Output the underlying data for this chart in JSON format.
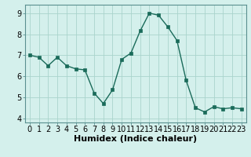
{
  "x": [
    0,
    1,
    2,
    3,
    4,
    5,
    6,
    7,
    8,
    9,
    10,
    11,
    12,
    13,
    14,
    15,
    16,
    17,
    18,
    19,
    20,
    21,
    22,
    23
  ],
  "y": [
    7.0,
    6.9,
    6.5,
    6.9,
    6.5,
    6.35,
    6.3,
    5.2,
    4.7,
    5.35,
    6.8,
    7.1,
    8.15,
    9.0,
    8.9,
    8.35,
    7.7,
    5.8,
    4.5,
    4.3,
    4.55,
    4.45,
    4.5,
    4.45
  ],
  "xlabel": "Humidex (Indice chaleur)",
  "ylim": [
    3.8,
    9.4
  ],
  "xlim": [
    -0.5,
    23.5
  ],
  "yticks": [
    4,
    5,
    6,
    7,
    8,
    9
  ],
  "xtick_labels": [
    "0",
    "1",
    "2",
    "3",
    "4",
    "5",
    "6",
    "7",
    "8",
    "9",
    "10",
    "11",
    "12",
    "13",
    "14",
    "15",
    "16",
    "17",
    "18",
    "19",
    "20",
    "21",
    "22",
    "23"
  ],
  "line_color": "#1a6b5a",
  "marker_color": "#1a6b5a",
  "bg_color": "#d4f0ec",
  "grid_color": "#aad4cc",
  "xlabel_fontsize": 8,
  "tick_fontsize": 7
}
